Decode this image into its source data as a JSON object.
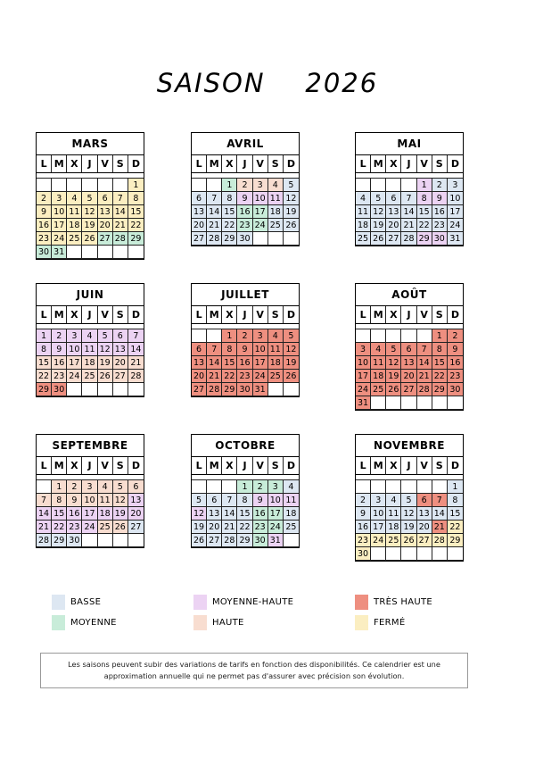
{
  "title": "SAISON    2026",
  "colors": {
    "B": "#dde7f2",
    "M": "#c8ecd9",
    "MH": "#ecd3f3",
    "H": "#f8ddd0",
    "TH": "#ee8f80",
    "F": "#fbeec1"
  },
  "day_headers": [
    "L",
    "M",
    "X",
    "J",
    "V",
    "S",
    "D"
  ],
  "months": [
    {
      "name": "MARS",
      "offset": 6,
      "days": 31,
      "levels": [
        "F",
        "F",
        "F",
        "F",
        "F",
        "F",
        "F",
        "F",
        "F",
        "F",
        "F",
        "F",
        "F",
        "F",
        "F",
        "F",
        "F",
        "F",
        "F",
        "F",
        "F",
        "F",
        "F",
        "F",
        "F",
        "F",
        "M",
        "M",
        "M",
        "M",
        "M"
      ]
    },
    {
      "name": "AVRIL",
      "offset": 2,
      "days": 30,
      "levels": [
        "M",
        "H",
        "H",
        "H",
        "B",
        "B",
        "B",
        "B",
        "MH",
        "MH",
        "MH",
        "B",
        "B",
        "B",
        "B",
        "M",
        "M",
        "B",
        "B",
        "B",
        "B",
        "B",
        "M",
        "M",
        "B",
        "B",
        "B",
        "B",
        "B",
        "B"
      ]
    },
    {
      "name": "MAI",
      "offset": 4,
      "days": 31,
      "levels": [
        "MH",
        "B",
        "B",
        "B",
        "B",
        "B",
        "B",
        "MH",
        "MH",
        "B",
        "B",
        "B",
        "B",
        "B",
        "B",
        "B",
        "B",
        "B",
        "B",
        "B",
        "B",
        "B",
        "B",
        "B",
        "B",
        "B",
        "B",
        "B",
        "MH",
        "MH",
        "B"
      ]
    },
    {
      "name": "JUIN",
      "offset": 0,
      "days": 30,
      "levels": [
        "MH",
        "MH",
        "MH",
        "MH",
        "MH",
        "MH",
        "MH",
        "MH",
        "MH",
        "MH",
        "MH",
        "MH",
        "MH",
        "MH",
        "H",
        "H",
        "H",
        "H",
        "H",
        "H",
        "H",
        "H",
        "H",
        "H",
        "H",
        "H",
        "H",
        "H",
        "TH",
        "TH"
      ]
    },
    {
      "name": "JUILLET",
      "offset": 2,
      "days": 31,
      "levels": [
        "TH",
        "TH",
        "TH",
        "TH",
        "TH",
        "TH",
        "TH",
        "TH",
        "TH",
        "TH",
        "TH",
        "TH",
        "TH",
        "TH",
        "TH",
        "TH",
        "TH",
        "TH",
        "TH",
        "TH",
        "TH",
        "TH",
        "TH",
        "TH",
        "TH",
        "TH",
        "TH",
        "TH",
        "TH",
        "TH",
        "TH"
      ]
    },
    {
      "name": "AOÛT",
      "offset": 5,
      "days": 31,
      "levels": [
        "TH",
        "TH",
        "TH",
        "TH",
        "TH",
        "TH",
        "TH",
        "TH",
        "TH",
        "TH",
        "TH",
        "TH",
        "TH",
        "TH",
        "TH",
        "TH",
        "TH",
        "TH",
        "TH",
        "TH",
        "TH",
        "TH",
        "TH",
        "TH",
        "TH",
        "TH",
        "TH",
        "TH",
        "TH",
        "TH",
        "TH"
      ]
    },
    {
      "name": "SEPTEMBRE",
      "offset": 1,
      "days": 30,
      "levels": [
        "H",
        "H",
        "H",
        "H",
        "H",
        "H",
        "H",
        "H",
        "H",
        "H",
        "H",
        "H",
        "MH",
        "MH",
        "MH",
        "MH",
        "MH",
        "MH",
        "MH",
        "MH",
        "MH",
        "MH",
        "MH",
        "MH",
        "H",
        "H",
        "B",
        "B",
        "B",
        "B"
      ]
    },
    {
      "name": "OCTOBRE",
      "offset": 3,
      "days": 31,
      "levels": [
        "M",
        "M",
        "M",
        "B",
        "B",
        "B",
        "B",
        "B",
        "MH",
        "MH",
        "MH",
        "MH",
        "B",
        "B",
        "B",
        "M",
        "M",
        "B",
        "B",
        "B",
        "B",
        "B",
        "M",
        "M",
        "B",
        "B",
        "B",
        "B",
        "B",
        "M",
        "MH"
      ]
    },
    {
      "name": "NOVEMBRE",
      "offset": 6,
      "days": 30,
      "levels": [
        "B",
        "B",
        "B",
        "B",
        "B",
        "TH",
        "TH",
        "B",
        "B",
        "B",
        "B",
        "B",
        "B",
        "B",
        "B",
        "B",
        "B",
        "B",
        "B",
        "B",
        "TH",
        "F",
        "F",
        "F",
        "F",
        "F",
        "F",
        "F",
        "F",
        "F"
      ]
    }
  ],
  "legend": [
    {
      "label": "BASSE",
      "level": "B"
    },
    {
      "label": "MOYENNE",
      "level": "M"
    },
    {
      "label": "MOYENNE-HAUTE",
      "level": "MH"
    },
    {
      "label": "HAUTE",
      "level": "H"
    },
    {
      "label": "TRÈS HAUTE",
      "level": "TH"
    },
    {
      "label": "FERMÉ",
      "level": "F"
    }
  ],
  "note": "Les saisons peuvent subir des variations de tarifs en fonction des disponibilités. Ce calendrier est une approximation annuelle qui ne permet pas d'assurer avec précision son évolution."
}
